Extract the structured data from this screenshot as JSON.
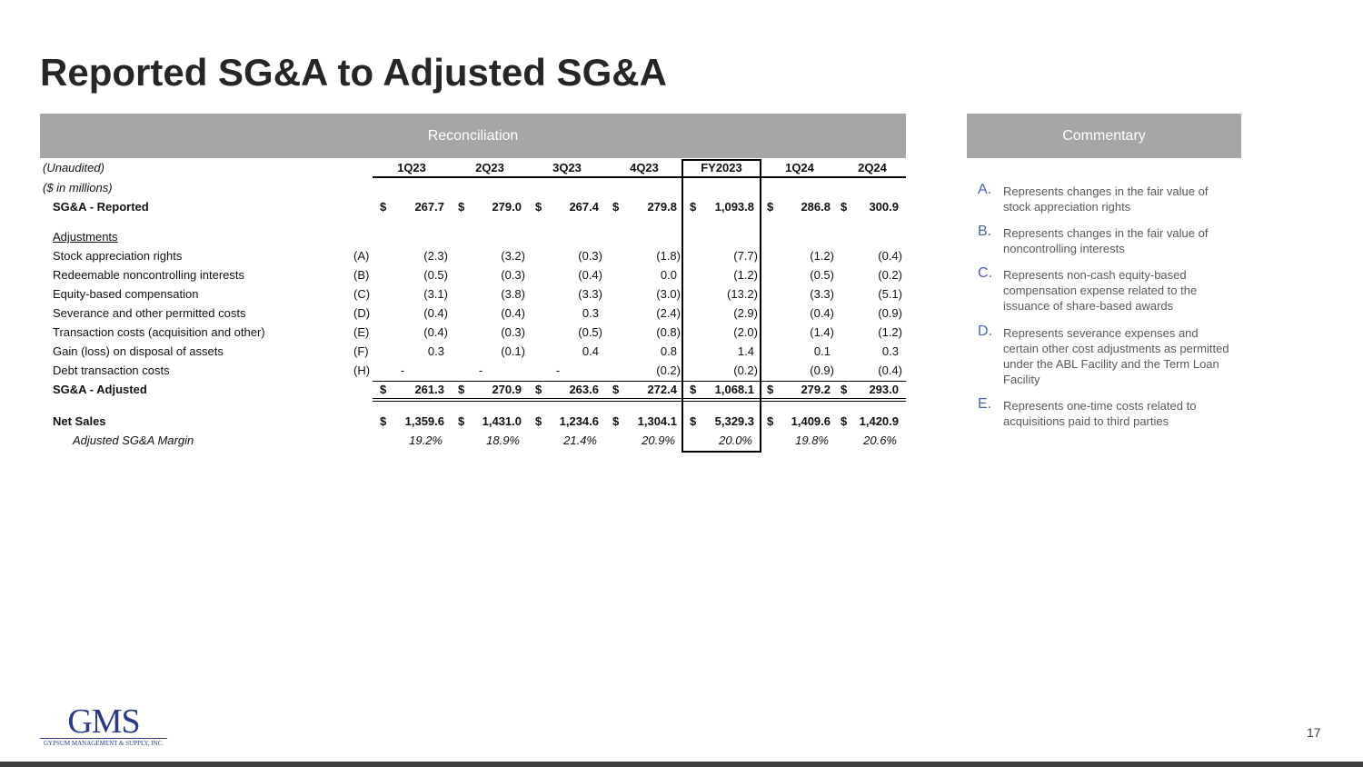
{
  "title": "Reported SG&A to Adjusted SG&A",
  "reconciliation_header": "Reconciliation",
  "commentary_header": "Commentary",
  "table": {
    "note1": "(Unaudited)",
    "note2": "($ in millions)",
    "columns": [
      "1Q23",
      "2Q23",
      "3Q23",
      "4Q23",
      "FY2023",
      "1Q24",
      "2Q24"
    ],
    "adjustments_label": "Adjustments",
    "reported": {
      "label": "SG&A - Reported",
      "values": [
        "267.7",
        "279.0",
        "267.4",
        "279.8",
        "1,093.8",
        "286.8",
        "300.9"
      ]
    },
    "rows": [
      {
        "label": "Stock appreciation rights",
        "ref": "(A)",
        "values": [
          "(2.3)",
          "(3.2)",
          "(0.3)",
          "(1.8)",
          "(7.7)",
          "(1.2)",
          "(0.4)"
        ]
      },
      {
        "label": "Redeemable noncontrolling interests",
        "ref": "(B)",
        "values": [
          "(0.5)",
          "(0.3)",
          "(0.4)",
          "0.0",
          "(1.2)",
          "(0.5)",
          "(0.2)"
        ]
      },
      {
        "label": "Equity-based compensation",
        "ref": "(C)",
        "values": [
          "(3.1)",
          "(3.8)",
          "(3.3)",
          "(3.0)",
          "(13.2)",
          "(3.3)",
          "(5.1)"
        ]
      },
      {
        "label": "Severance and other permitted costs",
        "ref": "(D)",
        "values": [
          "(0.4)",
          "(0.4)",
          "0.3",
          "(2.4)",
          "(2.9)",
          "(0.4)",
          "(0.9)"
        ]
      },
      {
        "label": "Transaction costs (acquisition and other)",
        "ref": "(E)",
        "values": [
          "(0.4)",
          "(0.3)",
          "(0.5)",
          "(0.8)",
          "(2.0)",
          "(1.4)",
          "(1.2)"
        ]
      },
      {
        "label": "Gain (loss) on disposal of assets",
        "ref": "(F)",
        "values": [
          "0.3",
          "(0.1)",
          "0.4",
          "0.8",
          "1.4",
          "0.1",
          "0.3"
        ]
      },
      {
        "label": "Debt transaction costs",
        "ref": "(H)",
        "values": [
          "-",
          "-",
          "-",
          "(0.2)",
          "(0.2)",
          "(0.9)",
          "(0.4)"
        ]
      }
    ],
    "adjusted": {
      "label": "SG&A - Adjusted",
      "values": [
        "261.3",
        "270.9",
        "263.6",
        "272.4",
        "1,068.1",
        "279.2",
        "293.0"
      ]
    },
    "net_sales": {
      "label": "Net Sales",
      "values": [
        "1,359.6",
        "1,431.0",
        "1,234.6",
        "1,304.1",
        "5,329.3",
        "1,409.6",
        "1,420.9"
      ]
    },
    "margin": {
      "label": "Adjusted SG&A Margin",
      "values": [
        "19.2%",
        "18.9%",
        "21.4%",
        "20.9%",
        "20.0%",
        "19.8%",
        "20.6%"
      ]
    },
    "currency": "$"
  },
  "commentary": [
    {
      "letter": "A.",
      "text": "Represents changes in the fair value of stock appreciation rights"
    },
    {
      "letter": "B.",
      "text": "Represents changes in the fair value of noncontrolling interests"
    },
    {
      "letter": "C.",
      "text": "Represents non-cash equity-based compensation expense related to the issuance of share-based awards"
    },
    {
      "letter": "D.",
      "text": "Represents severance expenses and certain other cost adjustments as permitted under the ABL Facility and the Term Loan Facility"
    },
    {
      "letter": "E.",
      "text": "Represents one-time costs related to acquisitions paid to third parties"
    }
  ],
  "logo": {
    "main": "GMS",
    "sub": "GYPSUM MANAGEMENT & SUPPLY, INC."
  },
  "page_number": "17",
  "colors": {
    "header_bar": "#a6a6a6",
    "letter": "#4a63ad",
    "footer": "#404040"
  }
}
